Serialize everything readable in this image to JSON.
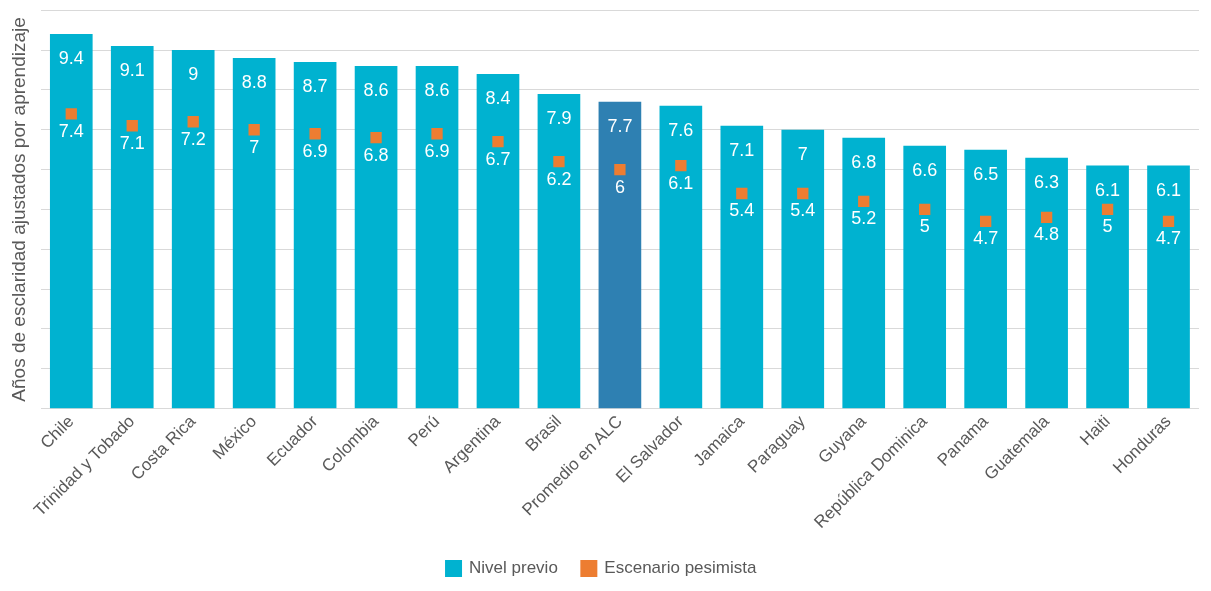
{
  "chart_data": {
    "type": "bar",
    "ylabel": "Años de esclaridad ajustados por aprendizaje",
    "categories": [
      "Chile",
      "Trinidad y Tobado",
      "Costa Rica",
      "México",
      "Ecuador",
      "Colombia",
      "Perú",
      "Argentina",
      "Brasil",
      "Promedio en ALC",
      "El Salvador",
      "Jamaica",
      "Paraguay",
      "Guyana",
      "República Dominica",
      "Panama",
      "Guatemala",
      "Haiti",
      "Honduras"
    ],
    "series": [
      {
        "name": "Nivel previo",
        "color": "#00b2d0",
        "colors": [
          "#00b2d0",
          "#00b2d0",
          "#00b2d0",
          "#00b2d0",
          "#00b2d0",
          "#00b2d0",
          "#00b2d0",
          "#00b2d0",
          "#00b2d0",
          "#2e80b2",
          "#00b2d0",
          "#00b2d0",
          "#00b2d0",
          "#00b2d0",
          "#00b2d0",
          "#00b2d0",
          "#00b2d0",
          "#00b2d0",
          "#00b2d0"
        ],
        "values": [
          9.4,
          9.1,
          9,
          8.8,
          8.7,
          8.6,
          8.6,
          8.4,
          7.9,
          7.7,
          7.6,
          7.1,
          7,
          6.8,
          6.6,
          6.5,
          6.3,
          6.1,
          6.1
        ]
      },
      {
        "name": "Escenario pesimista",
        "type": "scatter",
        "marker": "square",
        "x": [
          "Chile",
          "Trinidad y Tobado",
          "Costa Rica",
          "México",
          "Ecuador",
          "Colombia",
          "Perú",
          "Argentina",
          "Brasil",
          "Promedio en ALC",
          "El Salvador",
          "Jamaica",
          "Paraguay",
          "Guyana",
          "República Dominica",
          "Panama",
          "Guatemala",
          "Haiti",
          "Honduras"
        ],
        "color": "#ed7d31",
        "values": [
          7.4,
          7.1,
          7.2,
          7,
          6.9,
          6.8,
          6.9,
          6.7,
          6.2,
          6,
          6.1,
          5.4,
          5.4,
          5.2,
          5,
          4.7,
          4.8,
          5,
          4.7
        ]
      }
    ],
    "ylim": [
      0,
      10
    ],
    "yticks": [
      {
        "value": 0,
        "label": null
      },
      {
        "value": 1,
        "label": null
      },
      {
        "value": 2,
        "label": null
      },
      {
        "value": 3,
        "label": null
      },
      {
        "value": 4,
        "label": null
      },
      {
        "value": 5,
        "label": null
      },
      {
        "value": 6,
        "label": null
      },
      {
        "value": 7,
        "label": null
      },
      {
        "value": 8,
        "label": null
      },
      {
        "value": 9,
        "label": null
      },
      {
        "value": 10,
        "label": null
      }
    ],
    "grid": "y",
    "legend": "bottom",
    "data_labels": true
  }
}
